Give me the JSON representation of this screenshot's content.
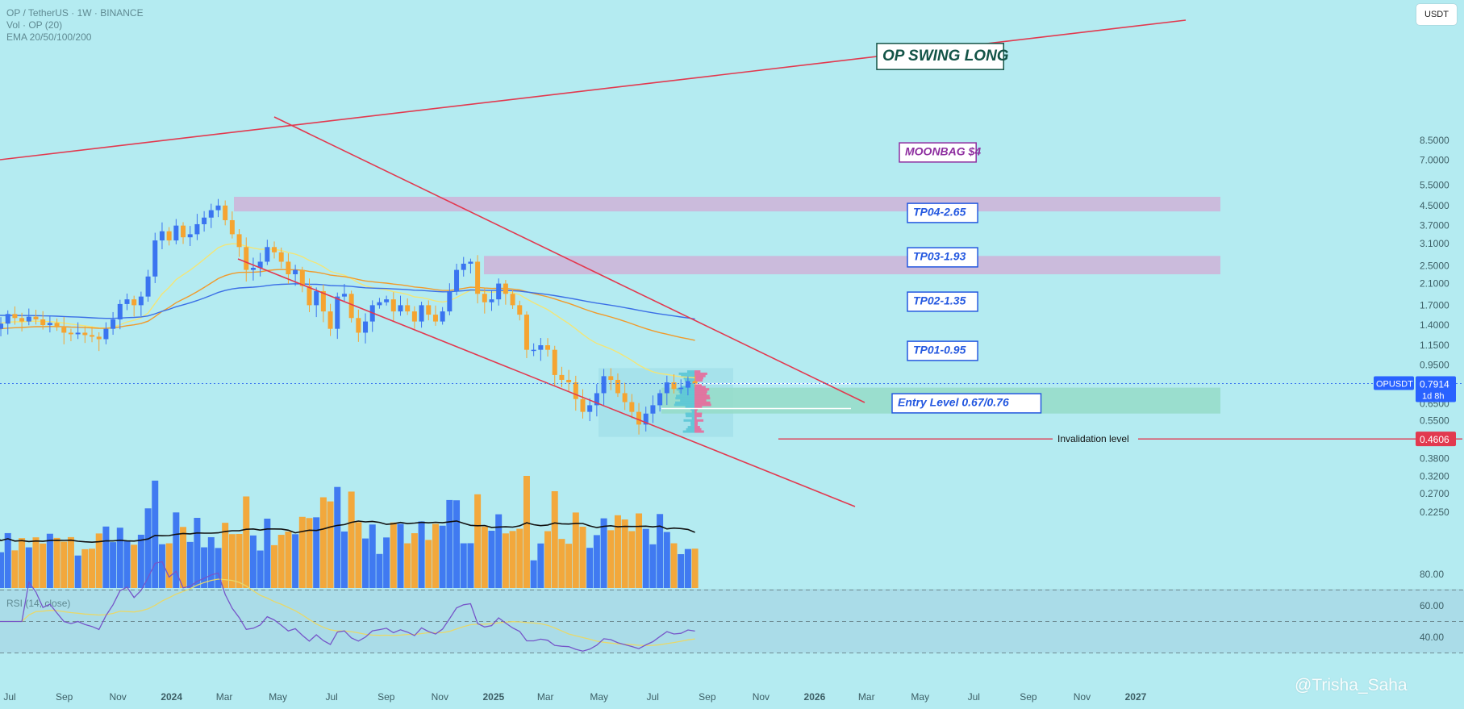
{
  "legend": {
    "symbol": "OP / TetherUS · 1W · BINANCE",
    "volume": "Vol · OP (20)",
    "ema": "EMA 20/50/100/200"
  },
  "currency_button": "USDT",
  "rsi_label": "RSI (14, close)",
  "watermark": "@Trisha_Saha",
  "colors": {
    "background": "#b4ebf1",
    "candle_up": "#3a74f0",
    "candle_down": "#f5a431",
    "trendline": "#e2394f",
    "ema20": "#f3e577",
    "ema50": "#f19a2a",
    "ema100": "#3b6fe6",
    "rsi": "#7656c9",
    "rsi_ma": "#e8d86a",
    "volume_ma": "#111111",
    "target_zone": "#cfb3d8",
    "entry_zone": "#95dcc8"
  },
  "chart_data": {
    "type": "candlestick",
    "title": "OP / TetherUS · 1W · BINANCE",
    "scale": "log",
    "ylim": [
      0.2,
      9.0
    ],
    "y_ticks": [
      "8.5000",
      "7.0000",
      "5.5000",
      "4.5000",
      "3.7000",
      "3.1000",
      "2.5000",
      "2.1000",
      "1.7000",
      "1.4000",
      "1.1500",
      "0.9500",
      "0.7914",
      "0.6500",
      "0.5500",
      "0.4606",
      "0.3800",
      "0.3200",
      "0.2700",
      "0.2250"
    ],
    "x_ticks": [
      "Jul",
      "Sep",
      "Nov",
      "2024",
      "Mar",
      "May",
      "Jul",
      "Sep",
      "Nov",
      "2025",
      "Mar",
      "May",
      "Jul",
      "Sep",
      "Nov",
      "2026",
      "Mar",
      "May",
      "Jul",
      "Sep",
      "Nov",
      "2027"
    ],
    "x_range": [
      "2023-07",
      "2027-01"
    ],
    "candles_start": "2023-06-05",
    "candles_end": "2025-08-18",
    "candle_closes": [
      1.3,
      1.35,
      1.42,
      1.56,
      1.5,
      1.45,
      1.52,
      1.48,
      1.4,
      1.43,
      1.37,
      1.3,
      1.28,
      1.3,
      1.27,
      1.25,
      1.22,
      1.35,
      1.48,
      1.72,
      1.8,
      1.7,
      1.85,
      2.25,
      3.2,
      3.5,
      3.2,
      3.7,
      3.3,
      3.4,
      3.75,
      4.0,
      4.3,
      4.5,
      3.9,
      3.4,
      3.0,
      2.4,
      2.45,
      2.6,
      3.0,
      2.85,
      2.6,
      2.3,
      2.4,
      2.05,
      1.7,
      1.95,
      1.6,
      1.35,
      1.85,
      1.9,
      1.5,
      1.3,
      1.45,
      1.7,
      1.75,
      1.8,
      1.6,
      1.7,
      1.6,
      1.45,
      1.7,
      1.55,
      1.45,
      1.6,
      1.95,
      2.4,
      2.55,
      2.6,
      1.9,
      1.75,
      1.8,
      2.1,
      1.9,
      1.7,
      1.55,
      1.1,
      1.1,
      1.15,
      1.1,
      0.86,
      0.82,
      0.8,
      0.68,
      0.6,
      0.64,
      0.72,
      0.85,
      0.82,
      0.72,
      0.66,
      0.6,
      0.53,
      0.59,
      0.64,
      0.72,
      0.8,
      0.75,
      0.76,
      0.81,
      0.79
    ],
    "ema": [
      {
        "name": "EMA 20",
        "color": "#f3e577"
      },
      {
        "name": "EMA 50",
        "color": "#f19a2a"
      },
      {
        "name": "EMA 100",
        "color": "#3b6fe6"
      },
      {
        "name": "EMA 200",
        "color": "#f19a2a"
      }
    ],
    "current_price": {
      "symbol": "OPUSDT",
      "value": "0.7914",
      "countdown": "1d 8h"
    },
    "invalidation": {
      "label": "Invalidation level",
      "value": "0.4606"
    },
    "annotations": [
      "OP SWING LONG",
      "MOONBAG $4",
      "TP04-2.65",
      "TP03-1.93",
      "TP02-1.35",
      "TP01-0.95",
      "Entry Level 0.67/0.76"
    ],
    "rsi": {
      "name": "RSI (14, close)",
      "y_ticks": [
        "80.00",
        "60.00",
        "40.00"
      ],
      "bands": [
        70,
        50,
        30
      ]
    },
    "volume": {
      "name": "Vol · OP (20)"
    }
  }
}
